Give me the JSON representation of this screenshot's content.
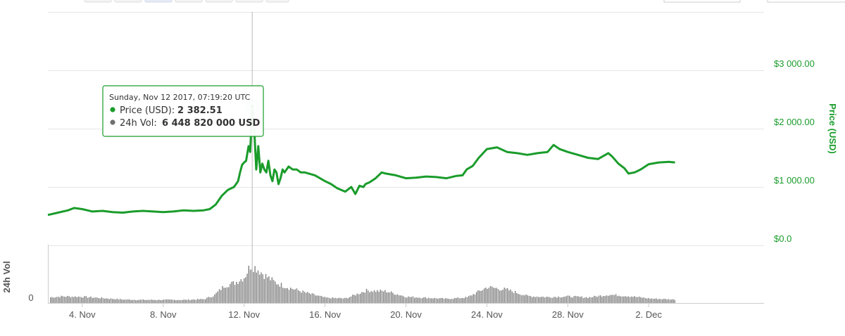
{
  "chart_data": [
    {
      "type": "line",
      "title": "",
      "ylabel": "Price (USD)",
      "ylim": [
        0,
        4000
      ],
      "yticks": [
        {
          "value": 0,
          "label": "$0.0"
        },
        {
          "value": 1000,
          "label": "$1 000.00"
        },
        {
          "value": 2000,
          "label": "$2 000.00"
        },
        {
          "value": 3000,
          "label": "$3 000.00"
        }
      ],
      "xlim": [
        2.3,
        37.7
      ],
      "xticks": [
        {
          "value": 4,
          "label": "4. Nov"
        },
        {
          "value": 8,
          "label": "8. Nov"
        },
        {
          "value": 12,
          "label": "12. Nov"
        },
        {
          "value": 16,
          "label": "16. Nov"
        },
        {
          "value": 20,
          "label": "20. Nov"
        },
        {
          "value": 24,
          "label": "24. Nov"
        },
        {
          "value": 28,
          "label": "28. Nov"
        },
        {
          "value": 32,
          "label": "2. Dec"
        }
      ],
      "series": [
        {
          "name": "Price (USD)",
          "color": "#1a9c2b",
          "x": [
            2.3,
            2.8,
            3.3,
            3.6,
            4.0,
            4.5,
            5.0,
            5.5,
            6.0,
            6.5,
            7.0,
            7.5,
            8.0,
            8.5,
            9.0,
            9.5,
            10.0,
            10.3,
            10.6,
            10.9,
            11.2,
            11.5,
            11.7,
            11.8,
            11.9,
            12.0,
            12.1,
            12.22,
            12.3,
            12.4,
            12.5,
            12.6,
            12.7,
            12.8,
            12.9,
            13.0,
            13.1,
            13.2,
            13.3,
            13.4,
            13.5,
            13.6,
            13.7,
            13.8,
            13.9,
            14.0,
            14.2,
            14.4,
            14.6,
            14.8,
            15.0,
            15.5,
            16.0,
            16.3,
            16.6,
            17.0,
            17.3,
            17.5,
            17.7,
            17.9,
            18.0,
            18.2,
            18.5,
            18.8,
            19.0,
            19.5,
            20.0,
            20.5,
            21.0,
            21.5,
            22.0,
            22.5,
            22.8,
            23.0,
            23.3,
            23.6,
            24.0,
            24.5,
            25.0,
            25.5,
            26.0,
            26.5,
            27.0,
            27.3,
            27.6,
            28.0,
            28.5,
            29.0,
            29.5,
            30.0,
            30.2,
            30.5,
            30.8,
            31.0,
            31.3,
            31.6,
            32.0,
            32.5,
            33.0,
            33.3
          ],
          "values": [
            520,
            560,
            600,
            640,
            620,
            580,
            590,
            570,
            560,
            580,
            590,
            580,
            570,
            580,
            600,
            590,
            600,
            620,
            700,
            850,
            950,
            1000,
            1100,
            1250,
            1380,
            1420,
            1450,
            1700,
            1600,
            2382.51,
            2000,
            1300,
            1700,
            1250,
            1400,
            1300,
            1250,
            1450,
            1200,
            1100,
            1300,
            1250,
            1050,
            1150,
            1300,
            1250,
            1350,
            1300,
            1300,
            1250,
            1250,
            1200,
            1100,
            1050,
            980,
            920,
            1000,
            880,
            1020,
            1000,
            1050,
            1080,
            1150,
            1250,
            1230,
            1200,
            1150,
            1160,
            1180,
            1170,
            1150,
            1190,
            1200,
            1300,
            1360,
            1500,
            1650,
            1680,
            1600,
            1580,
            1550,
            1580,
            1600,
            1720,
            1650,
            1600,
            1550,
            1500,
            1480,
            1580,
            1520,
            1400,
            1320,
            1230,
            1250,
            1300,
            1390,
            1420,
            1430,
            1420
          ]
        }
      ]
    },
    {
      "type": "bar",
      "title": "",
      "ylabel": "24h Vol",
      "yticks": [
        {
          "value": 0,
          "label": "0"
        }
      ],
      "xlim": [
        2.3,
        37.7
      ],
      "series": [
        {
          "name": "24h Vol",
          "color": "#888888",
          "x": [
            2.3,
            3.0,
            4.0,
            5.0,
            6.0,
            7.0,
            8.0,
            9.0,
            10.0,
            10.5,
            11.0,
            11.5,
            12.0,
            12.3,
            12.6,
            13.0,
            13.5,
            14.0,
            15.0,
            16.0,
            17.0,
            18.0,
            19.0,
            20.0,
            21.0,
            22.0,
            23.0,
            24.0,
            25.0,
            26.0,
            27.0,
            28.0,
            29.0,
            30.0,
            31.0,
            32.0,
            33.3
          ],
          "values": [
            1.6,
            1.9,
            1.8,
            1.4,
            1.0,
            0.9,
            0.9,
            0.9,
            1.1,
            2.2,
            5.0,
            5.8,
            7.5,
            11.0,
            10.0,
            8.0,
            6.0,
            4.8,
            3.0,
            1.5,
            1.3,
            3.6,
            3.4,
            1.8,
            1.5,
            1.2,
            1.6,
            4.6,
            3.8,
            2.0,
            1.7,
            1.9,
            1.6,
            2.4,
            2.0,
            1.3,
            1.0
          ],
          "unit_max": 12
        }
      ]
    }
  ],
  "tooltip": {
    "date": "Sunday, Nov 12 2017, 07:19:20 UTC",
    "price_label": "Price (USD):",
    "price_value": "2 382.51",
    "vol_label": "24h Vol:",
    "vol_value": "6 448 820 000 USD",
    "point_x": 12.4,
    "point_y": 2382.51
  },
  "colors": {
    "price": "#1a9c2b",
    "volume": "#808080",
    "grid": "#e6e6e6",
    "tooltip_border": "#1a9c2b"
  }
}
